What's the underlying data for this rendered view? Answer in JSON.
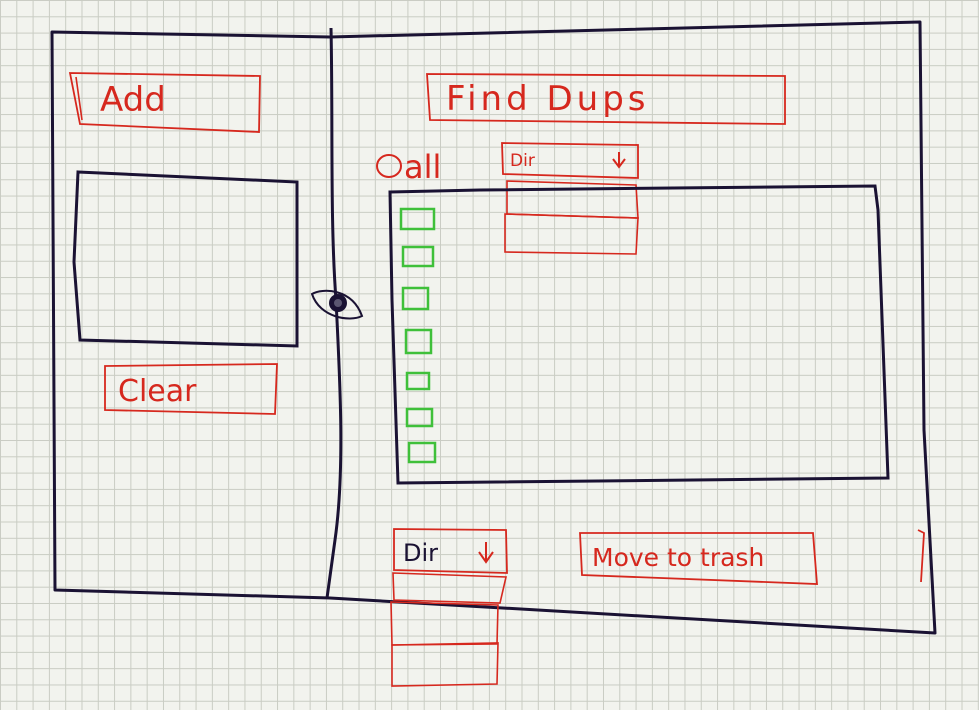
{
  "window": {
    "outline_color": "#1a1233",
    "accent_color": "#d6281e",
    "checkbox_color": "#3fc03a"
  },
  "left_panel": {
    "add_label": "Add",
    "clear_label": "Clear"
  },
  "splitter": {
    "handle_icon": "eye-icon"
  },
  "right_panel": {
    "find_dups_label": "Find Dups",
    "all_radio_label": "all",
    "filter_dropdown": {
      "value": "Dir",
      "option_count_visible": 2
    },
    "results": {
      "checkbox_count": 7
    },
    "action_dropdown": {
      "value": "Dir",
      "option_count_visible": 3
    },
    "move_to_trash_label": "Move to trash"
  }
}
